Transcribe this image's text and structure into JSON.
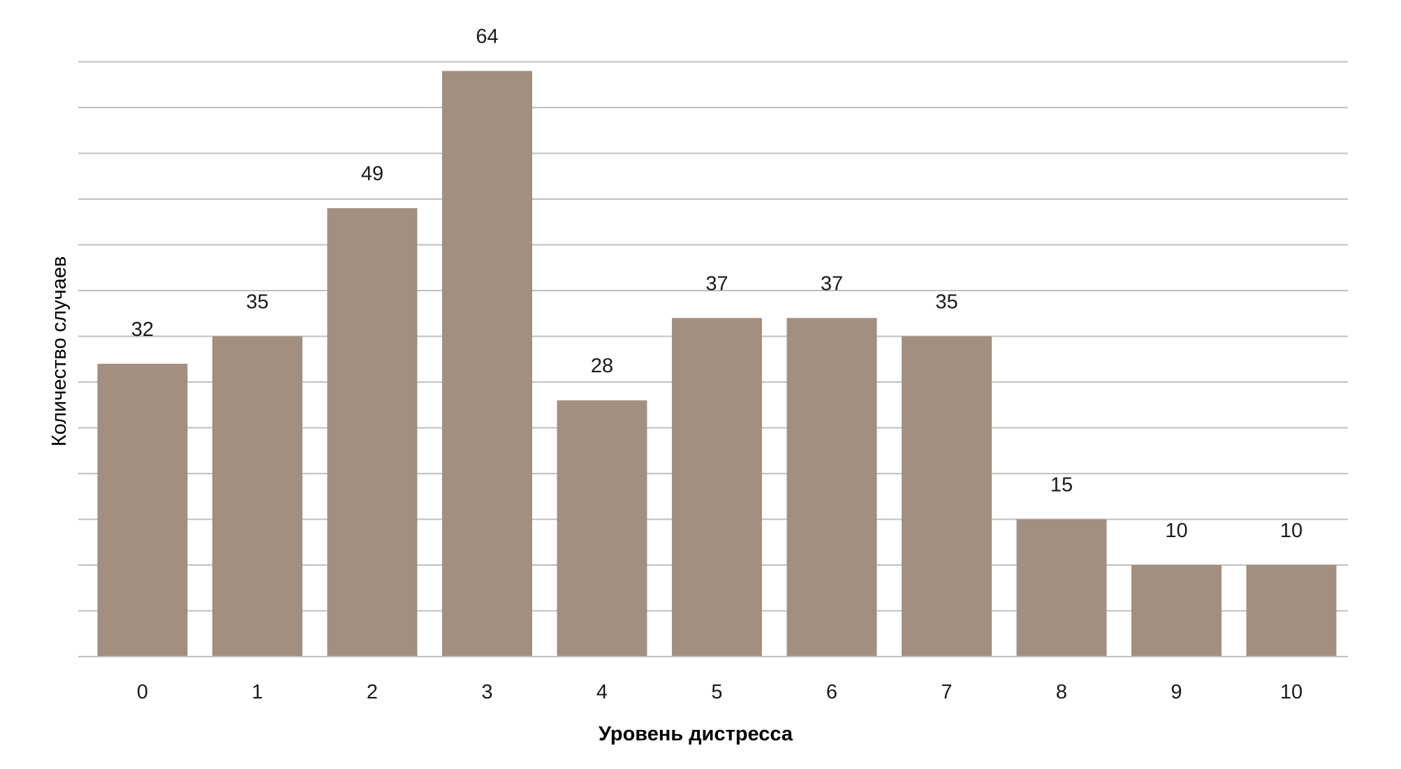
{
  "chart_data": {
    "type": "bar",
    "categories": [
      "0",
      "1",
      "2",
      "3",
      "4",
      "5",
      "6",
      "7",
      "8",
      "9",
      "10"
    ],
    "values": [
      32,
      35,
      49,
      64,
      28,
      37,
      37,
      35,
      15,
      10,
      10
    ],
    "data_labels": [
      "32",
      "35",
      "49",
      "64",
      "28",
      "37",
      "37",
      "35",
      "15",
      "10",
      "10"
    ],
    "title": "",
    "xlabel": "Уровень дистресса",
    "ylabel": "Количество случаев",
    "ylim": [
      0,
      65
    ],
    "grid_step": 5,
    "grid": true,
    "legend": "none",
    "bar_color": "#a38f7f",
    "grid_color": "#bfbfbf"
  }
}
